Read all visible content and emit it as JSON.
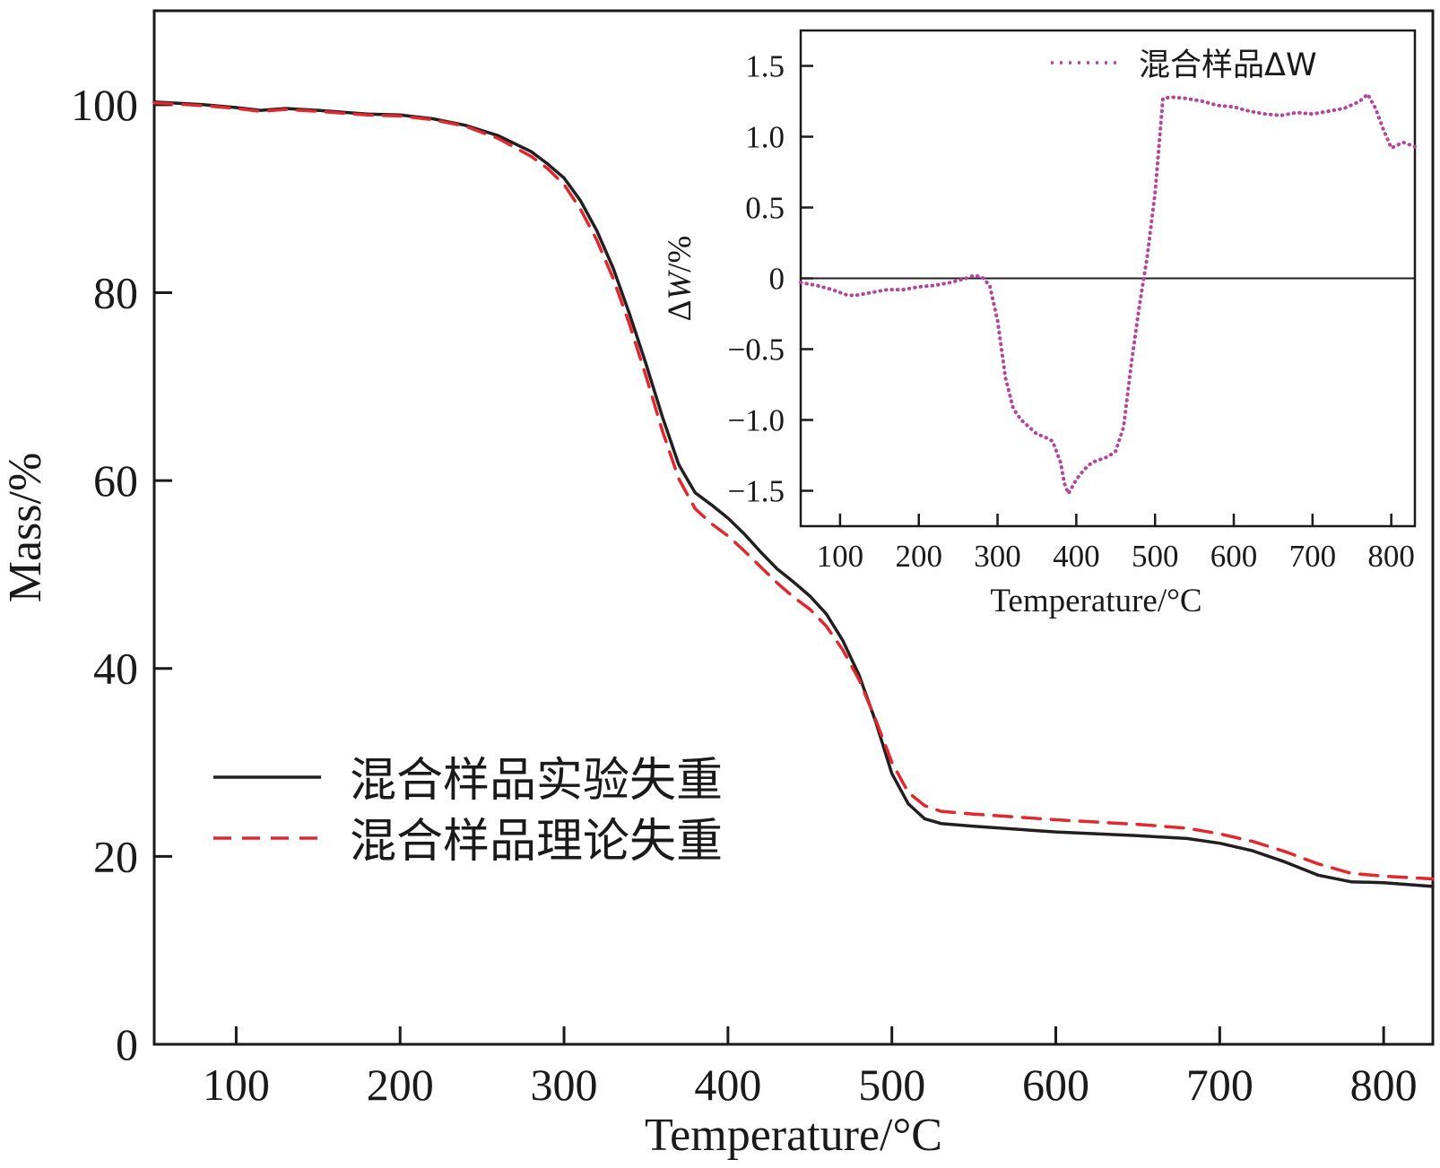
{
  "chart_data": [
    {
      "type": "line",
      "xlabel": "Temperature/°C",
      "ylabel": "Mass/%",
      "xlim": [
        50,
        830
      ],
      "ylim": [
        0,
        110
      ],
      "xticks": [
        100,
        200,
        300,
        400,
        500,
        600,
        700,
        800
      ],
      "yticks": [
        0,
        20,
        40,
        60,
        80,
        100
      ],
      "legend_position": "lower-left",
      "series": [
        {
          "name": "混合样品实验失重",
          "color": "#231f20",
          "style": "solid",
          "x": [
            50,
            80,
            100,
            115,
            130,
            150,
            180,
            200,
            220,
            240,
            260,
            280,
            290,
            300,
            310,
            320,
            330,
            340,
            350,
            360,
            370,
            380,
            390,
            400,
            410,
            420,
            430,
            440,
            450,
            460,
            470,
            480,
            490,
            500,
            510,
            520,
            530,
            550,
            600,
            650,
            680,
            700,
            720,
            740,
            760,
            780,
            800,
            830
          ],
          "y": [
            100.3,
            100.0,
            99.7,
            99.4,
            99.6,
            99.4,
            99.0,
            98.9,
            98.5,
            97.8,
            96.7,
            95.0,
            93.7,
            92.2,
            89.8,
            86.6,
            82.6,
            77.7,
            72.4,
            66.8,
            61.7,
            58.7,
            57.4,
            56.0,
            54.3,
            52.4,
            50.6,
            49.2,
            47.7,
            45.8,
            43.0,
            39.3,
            34.4,
            28.8,
            25.6,
            24.0,
            23.5,
            23.2,
            22.6,
            22.2,
            21.9,
            21.4,
            20.6,
            19.4,
            18.0,
            17.3,
            17.2,
            16.8
          ]
        },
        {
          "name": "混合样品理论失重",
          "color": "#e0282e",
          "style": "dashed",
          "x": [
            50,
            80,
            100,
            115,
            130,
            150,
            180,
            200,
            220,
            240,
            260,
            280,
            290,
            300,
            310,
            320,
            330,
            340,
            350,
            360,
            370,
            380,
            390,
            400,
            410,
            420,
            430,
            440,
            450,
            460,
            470,
            480,
            490,
            500,
            510,
            520,
            530,
            550,
            600,
            650,
            680,
            700,
            720,
            740,
            760,
            780,
            800,
            830
          ],
          "y": [
            100.2,
            99.9,
            99.6,
            99.3,
            99.5,
            99.3,
            98.9,
            98.8,
            98.4,
            97.7,
            96.4,
            94.5,
            93.2,
            91.5,
            88.9,
            85.6,
            81.5,
            76.6,
            71.1,
            65.3,
            60.2,
            57.0,
            55.4,
            54.1,
            52.5,
            50.8,
            49.1,
            47.6,
            46.3,
            44.5,
            42.0,
            38.8,
            34.6,
            30.0,
            26.8,
            25.4,
            24.8,
            24.5,
            23.9,
            23.4,
            23.0,
            22.4,
            21.6,
            20.5,
            19.2,
            18.2,
            17.9,
            17.6
          ]
        }
      ]
    },
    {
      "type": "line",
      "inset": true,
      "xlabel": "Temperature/°C",
      "ylabel": "ΔW/%",
      "xlim": [
        50,
        830
      ],
      "ylim": [
        -1.75,
        1.75
      ],
      "xticks": [
        100,
        200,
        300,
        400,
        500,
        600,
        700,
        800
      ],
      "yticks": [
        -1.5,
        -1.0,
        -0.5,
        0,
        0.5,
        1.0,
        1.5
      ],
      "ytick_labels": [
        "−1.5",
        "−1.0",
        "−0.5",
        "0",
        "0.5",
        "1.0",
        "1.5"
      ],
      "zero_line": true,
      "legend_position": "top-right",
      "series": [
        {
          "name": "混合样品ΔW",
          "color": "#b5449c",
          "style": "dotted",
          "x": [
            50,
            70,
            90,
            110,
            120,
            140,
            160,
            180,
            200,
            220,
            240,
            260,
            270,
            280,
            290,
            300,
            310,
            320,
            330,
            340,
            350,
            360,
            370,
            380,
            385,
            390,
            400,
            410,
            420,
            430,
            440,
            450,
            460,
            470,
            480,
            490,
            500,
            510,
            520,
            540,
            560,
            580,
            600,
            620,
            640,
            660,
            680,
            700,
            720,
            740,
            760,
            770,
            780,
            790,
            800,
            815,
            830
          ],
          "y": [
            -0.03,
            -0.05,
            -0.08,
            -0.12,
            -0.12,
            -0.1,
            -0.08,
            -0.08,
            -0.06,
            -0.05,
            -0.03,
            0.0,
            0.02,
            0.01,
            -0.05,
            -0.3,
            -0.7,
            -0.92,
            -1.0,
            -1.05,
            -1.1,
            -1.12,
            -1.15,
            -1.3,
            -1.45,
            -1.52,
            -1.42,
            -1.35,
            -1.3,
            -1.28,
            -1.26,
            -1.22,
            -1.05,
            -0.6,
            -0.2,
            0.15,
            0.6,
            1.27,
            1.28,
            1.27,
            1.25,
            1.22,
            1.21,
            1.18,
            1.16,
            1.15,
            1.17,
            1.16,
            1.18,
            1.2,
            1.25,
            1.3,
            1.2,
            1.05,
            0.92,
            0.96,
            0.93
          ]
        }
      ]
    }
  ]
}
